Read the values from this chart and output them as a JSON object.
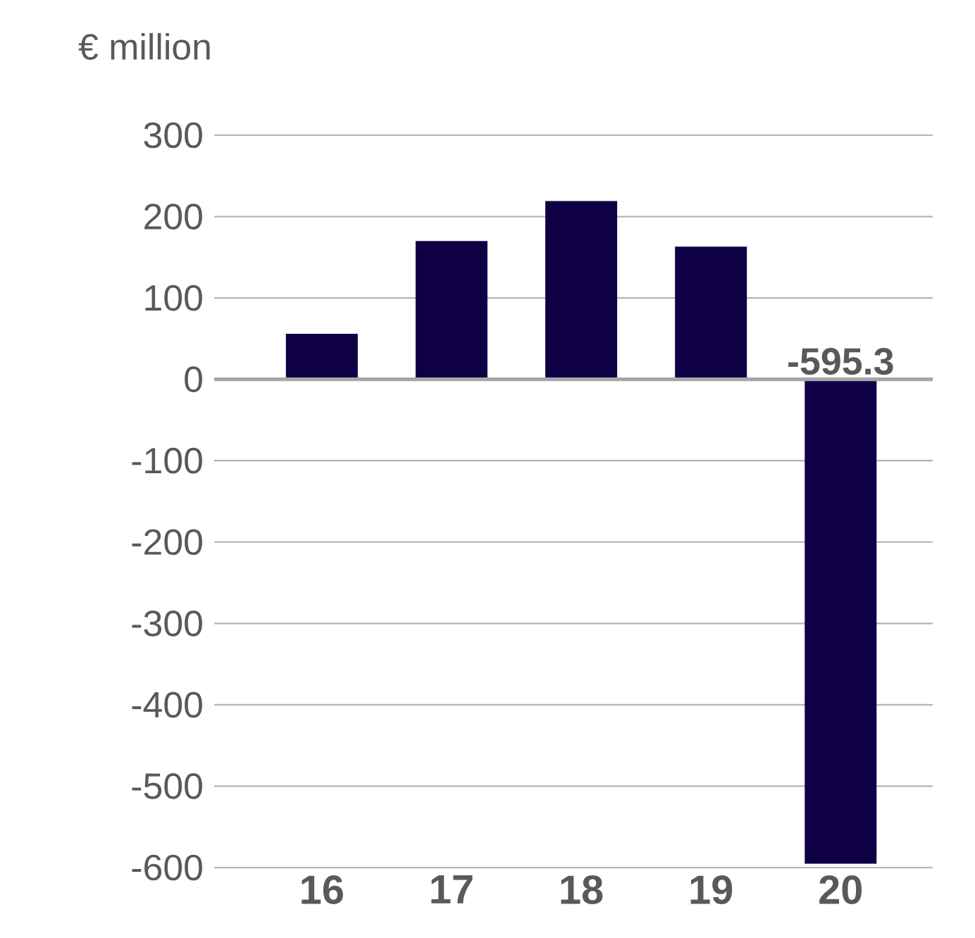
{
  "chart_data": {
    "type": "bar",
    "ylabel": "€ million",
    "categories": [
      "16",
      "17",
      "18",
      "19",
      "20"
    ],
    "values": [
      56,
      170,
      219,
      163,
      -595.3
    ],
    "value_labels": [
      null,
      null,
      null,
      null,
      "-595.3"
    ],
    "color": "#0f0045",
    "ylim": [
      -600,
      300
    ],
    "yticks": [
      -600,
      -500,
      -400,
      -300,
      -200,
      -100,
      0,
      100,
      200,
      300
    ],
    "grid": "y"
  }
}
